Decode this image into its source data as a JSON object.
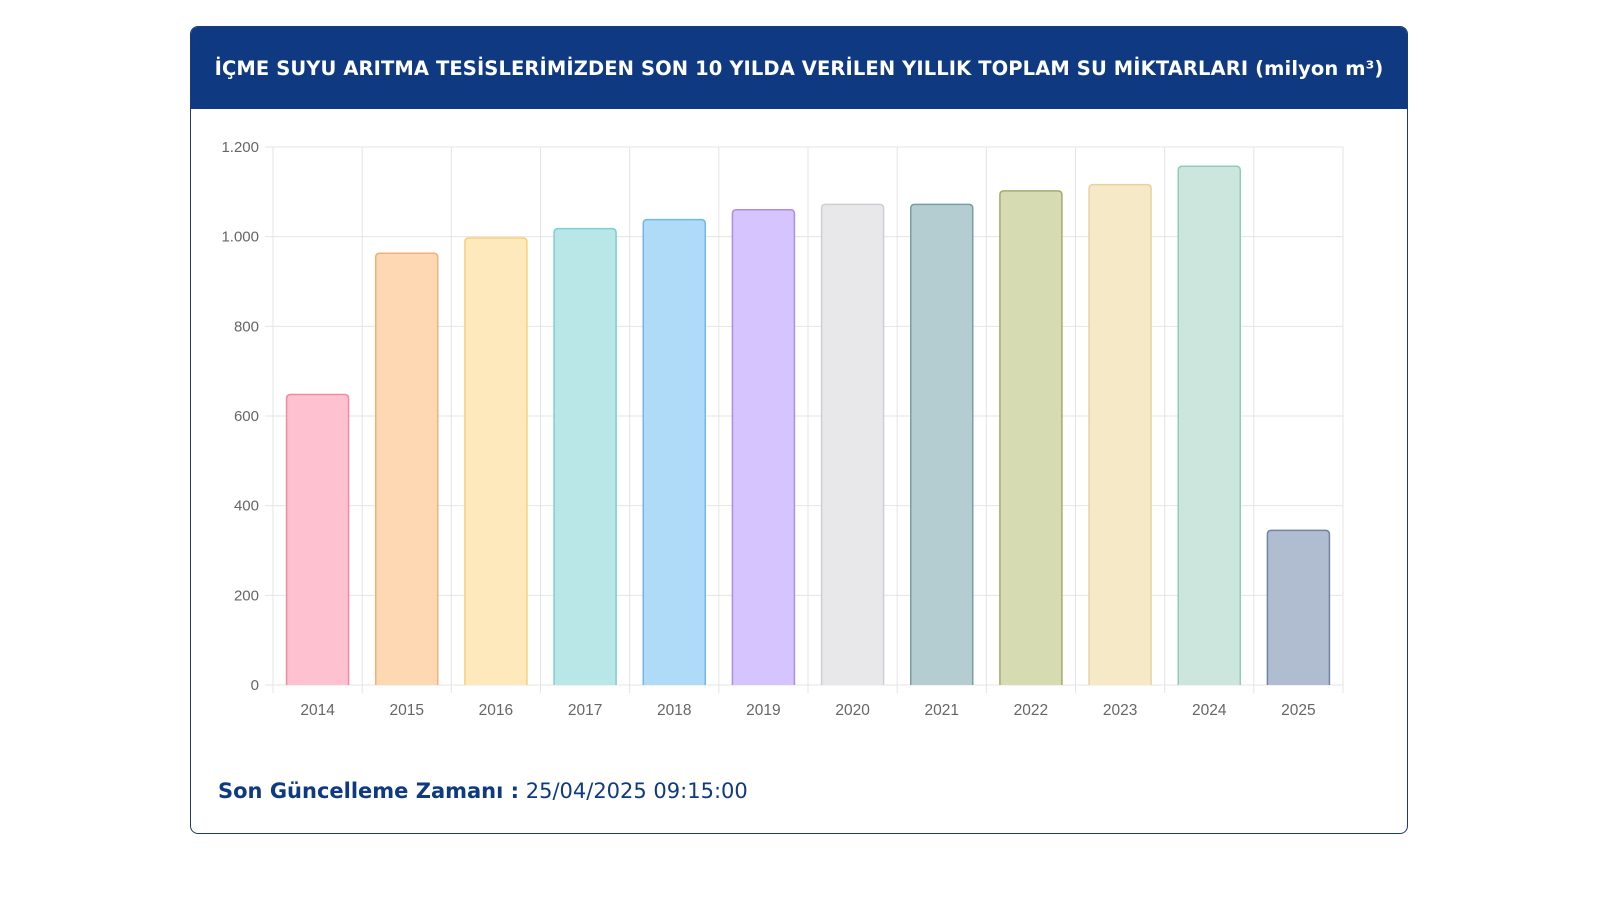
{
  "header": {
    "title": "İÇME SUYU ARITMA TESİSLERİMİZDEN SON 10 YILDA VERİLEN YILLIK TOPLAM SU MİKTARLARI (milyon m³)"
  },
  "footer": {
    "label": "Son Güncelleme Zamanı :",
    "value": "25/04/2025 09:15:00"
  },
  "colors": {
    "header_bg": "#0f3a82",
    "bar_fills": [
      "#fec1d0",
      "#fdd8b3",
      "#fee9bd",
      "#b9e6e6",
      "#b0dbf8",
      "#d6c4fe",
      "#e8e8ea",
      "#b4cdd1",
      "#d7dbb2",
      "#f6e9c8",
      "#cde6dd",
      "#b0bdd1"
    ],
    "bar_strokes": [
      "#f38aa4",
      "#f3b077",
      "#f6cf7c",
      "#7ecfcf",
      "#6db9ee",
      "#a98cf7",
      "#cfcfd3",
      "#7a9ea5",
      "#a4ab6e",
      "#e6d29f",
      "#8fcdb8",
      "#6f83a6"
    ]
  },
  "chart_data": {
    "type": "bar",
    "title": "İÇME SUYU ARITMA TESİSLERİMİZDEN SON 10 YILDA VERİLEN YILLIK TOPLAM SU MİKTARLARI (milyon m³)",
    "categories": [
      "2014",
      "2015",
      "2016",
      "2017",
      "2018",
      "2019",
      "2020",
      "2021",
      "2022",
      "2023",
      "2024",
      "2025"
    ],
    "values": [
      648,
      963,
      997,
      1018,
      1038,
      1060,
      1072,
      1072,
      1102,
      1116,
      1157,
      345
    ],
    "ylim": [
      0,
      1200
    ],
    "yticks": [
      0,
      200,
      400,
      600,
      800,
      1000,
      1200
    ],
    "ytick_labels": [
      "0",
      "200",
      "400",
      "600",
      "800",
      "1.000",
      "1.200"
    ],
    "xlabel": "",
    "ylabel": "",
    "grid": true,
    "legend": "none"
  }
}
